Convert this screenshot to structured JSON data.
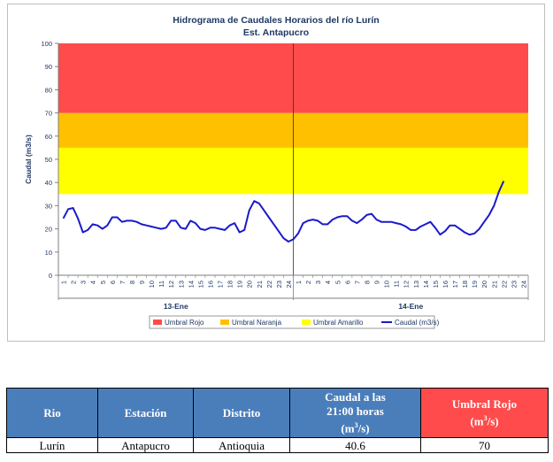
{
  "chart_data": {
    "type": "line",
    "title": "Hidrograma de Caudales Horarios del río Lurín",
    "subtitle": "Est. Antapucro",
    "ylabel": "Caudal  (m3/s)",
    "ylim": [
      0,
      100
    ],
    "yticks": [
      0,
      10,
      20,
      30,
      40,
      50,
      60,
      70,
      80,
      90,
      100
    ],
    "hour_labels": [
      "1",
      "2",
      "3",
      "4",
      "5",
      "6",
      "7",
      "8",
      "9",
      "10",
      "11",
      "12",
      "13",
      "14",
      "15",
      "16",
      "17",
      "18",
      "19",
      "20",
      "21",
      "22",
      "23",
      "24"
    ],
    "days": [
      "13-Ene",
      "14-Ene"
    ],
    "bands": [
      {
        "name": "Umbral Amarillo",
        "from": 35,
        "to": 55,
        "color": "#ffff00"
      },
      {
        "name": "Umbral Naranja",
        "from": 55,
        "to": 70,
        "color": "#ffc000"
      },
      {
        "name": "Umbral Rojo",
        "from": 70,
        "to": 100,
        "color": "#ff4b4b"
      }
    ],
    "series": [
      {
        "name": "Caudal (m3/s)",
        "color": "#1a1acc",
        "x": [
          0,
          0.5,
          1,
          1.5,
          2,
          2.5,
          3,
          3.5,
          4,
          4.5,
          5,
          5.5,
          6,
          6.5,
          7,
          7.5,
          8,
          8.5,
          9,
          9.5,
          10,
          10.5,
          11,
          11.5,
          12,
          12.5,
          13,
          13.5,
          14,
          14.5,
          15,
          15.5,
          16,
          16.5,
          17,
          17.5,
          18,
          18.5,
          19,
          19.5,
          20,
          20.5,
          21,
          21.5,
          22,
          22.5,
          23,
          23.5,
          24,
          24.5,
          25,
          25.5,
          26,
          26.5,
          27,
          27.5,
          28,
          28.5,
          29,
          29.5,
          30,
          30.5,
          31,
          31.5,
          32,
          32.5,
          33,
          33.5,
          34,
          34.5,
          35,
          35.5,
          36,
          36.5,
          37,
          37.5,
          38,
          38.5,
          39,
          39.5,
          40,
          40.5,
          41,
          41.5,
          42,
          42.5,
          43,
          43.5,
          44,
          44.5,
          45
        ],
        "values": [
          24.5,
          28.5,
          29,
          24.5,
          18.5,
          19.5,
          22,
          21.5,
          20,
          21.5,
          25,
          25,
          23,
          23.5,
          23.5,
          23,
          22,
          21.5,
          21,
          20.5,
          20,
          20.5,
          23.5,
          23.5,
          20.5,
          20,
          23.5,
          22.5,
          20,
          19.5,
          20.5,
          20.5,
          20,
          19.5,
          21.5,
          22.5,
          18.5,
          19.5,
          28,
          32,
          31,
          28,
          25,
          22,
          19,
          16,
          14.5,
          15.5,
          18,
          22.5,
          23.5,
          24,
          23.5,
          22,
          22,
          24,
          25,
          25.5,
          25.5,
          23.5,
          22.5,
          24,
          26,
          26.5,
          24,
          23,
          23,
          23,
          22.5,
          22,
          21,
          19.5,
          19.5,
          21,
          22,
          23,
          20.5,
          17.5,
          19,
          21.5,
          21.5,
          20,
          18.5,
          17.5,
          18,
          20,
          23,
          26,
          30,
          36,
          40.6
        ]
      }
    ],
    "legend_position": "bottom",
    "grid": false
  },
  "table": {
    "headers": {
      "rio": "Rio",
      "estacion": "Estación",
      "distrito": "Distrito",
      "caudal_line1": "Caudal a las",
      "caudal_line2": "21:00 horas",
      "caudal_unit_base": "(m",
      "caudal_unit_exp": "3",
      "caudal_unit_end": "/s)",
      "umbral_line1": "Umbral Rojo",
      "umbral_unit_base": "(m",
      "umbral_unit_exp": "3",
      "umbral_unit_end": "/s)"
    },
    "row": {
      "rio": "Lurín",
      "estacion": "Antapucro",
      "distrito": "Antioquia",
      "caudal": "40.6",
      "umbral": "70"
    },
    "colors": {
      "header_blue": "#4a7ebb",
      "header_red": "#ff4b4b"
    }
  }
}
